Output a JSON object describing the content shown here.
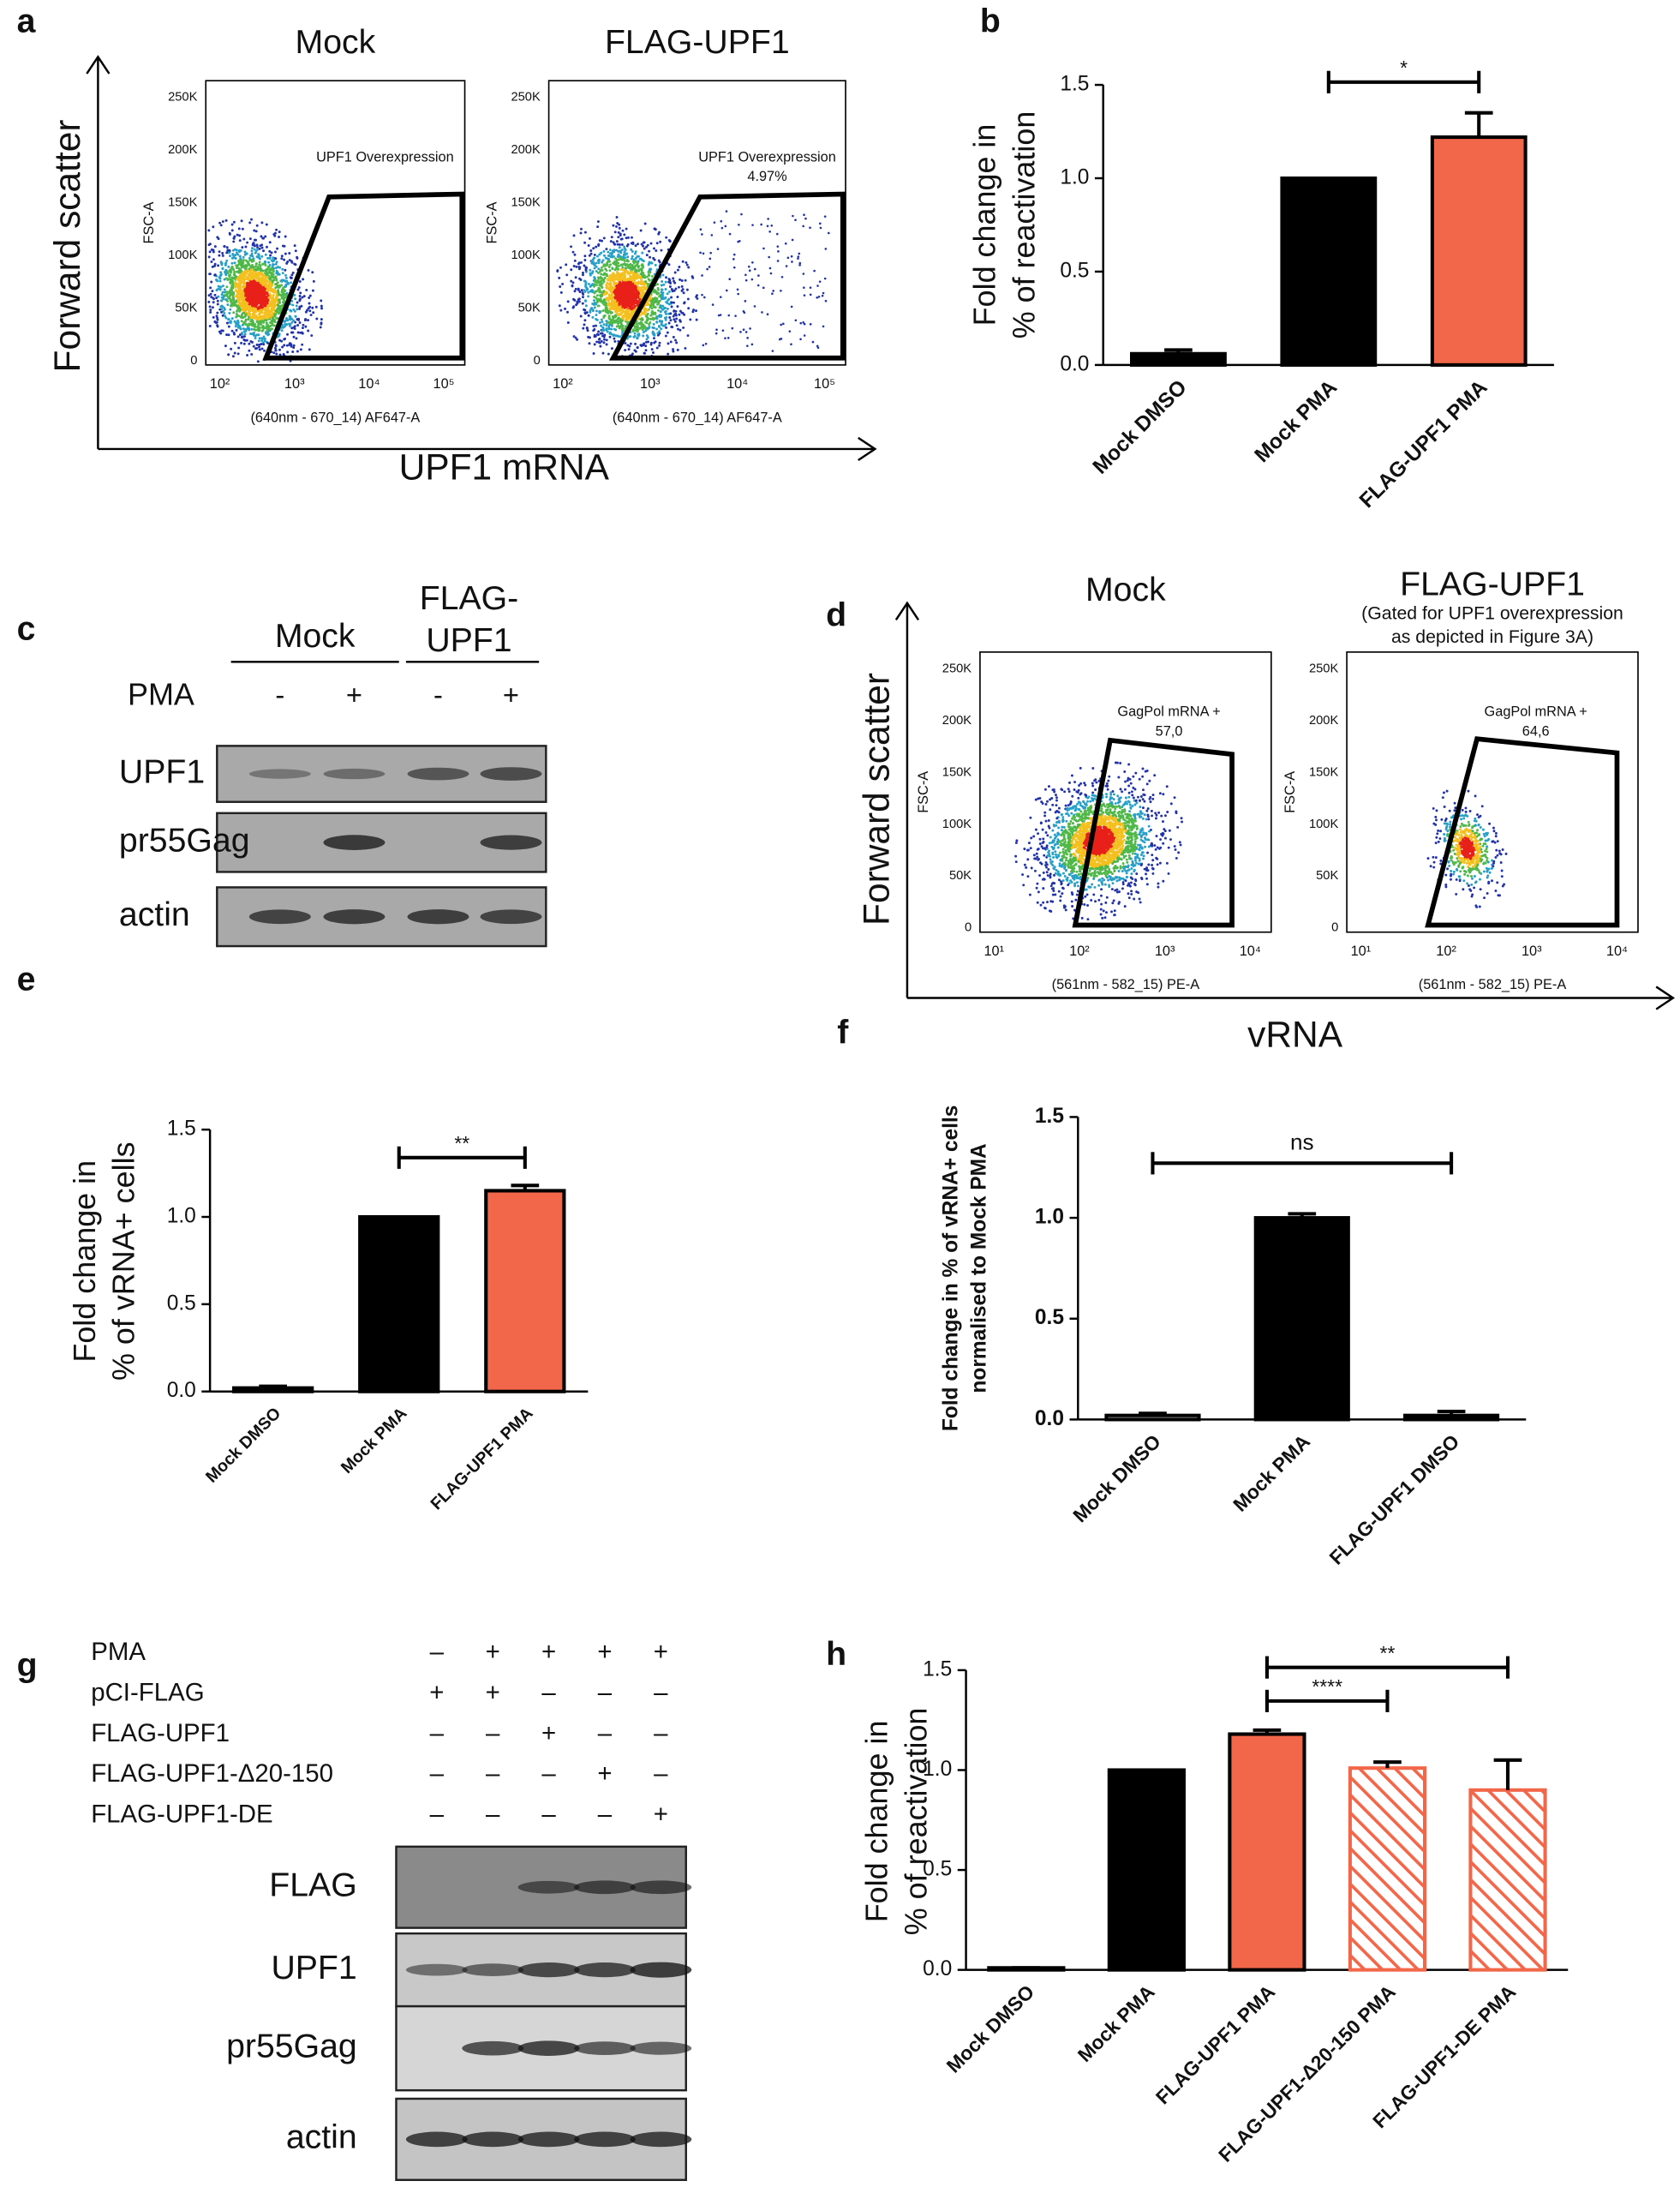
{
  "panel_labels": [
    "a",
    "b",
    "c",
    "d",
    "e",
    "f",
    "g",
    "h"
  ],
  "panel_a": {
    "y_axis_label": "Forward scatter",
    "x_axis_label": "UPF1 mRNA",
    "plots": [
      {
        "title": "Mock",
        "y_label": "FSC-A",
        "x_label": "(640nm - 670_14) AF647-A",
        "yticks": [
          "250K",
          "200K",
          "150K",
          "100K",
          "50K",
          "0"
        ],
        "xticks": [
          "10²",
          "10³",
          "10⁴",
          "10⁵"
        ],
        "gate_label": [
          "UPF1 Overexpression"
        ]
      },
      {
        "title": "FLAG-UPF1",
        "y_label": "FSC-A",
        "x_label": "(640nm - 670_14) AF647-A",
        "yticks": [
          "250K",
          "200K",
          "150K",
          "100K",
          "50K",
          "0"
        ],
        "xticks": [
          "10²",
          "10³",
          "10⁴",
          "10⁵"
        ],
        "gate_label": [
          "UPF1 Overexpression",
          "4.97%"
        ]
      }
    ]
  },
  "panel_c": {
    "groups": [
      [
        "Mock"
      ],
      [
        "FLAG-",
        "UPF1"
      ]
    ],
    "treatment": "PMA",
    "signs": [
      "-",
      "+",
      "-",
      "+"
    ],
    "rows": [
      "UPF1",
      "pr55Gag",
      "actin"
    ]
  },
  "panel_d": {
    "y_axis_label": "Forward scatter",
    "x_axis_label": "vRNA",
    "plots": [
      {
        "title": "Mock",
        "y_label": "FSC-A",
        "x_label": "(561nm - 582_15) PE-A",
        "yticks": [
          "250K",
          "200K",
          "150K",
          "100K",
          "50K",
          "0"
        ],
        "xticks": [
          "10¹",
          "10²",
          "10³",
          "10⁴"
        ],
        "gate_label": [
          "GagPol mRNA +",
          "57,0"
        ]
      },
      {
        "title": "FLAG-UPF1",
        "title_note": [
          "(Gated for UPF1 overexpression",
          "as depicted in Figure 3A)"
        ],
        "y_label": "FSC-A",
        "x_label": "(561nm - 582_15) PE-A",
        "yticks": [
          "250K",
          "200K",
          "150K",
          "100K",
          "50K",
          "0"
        ],
        "xticks": [
          "10¹",
          "10²",
          "10³",
          "10⁴"
        ],
        "gate_label": [
          "GagPol mRNA +",
          "64,6"
        ]
      }
    ]
  },
  "panel_g": {
    "conditions": [
      {
        "name": "PMA",
        "signs": [
          "–",
          "+",
          "+",
          "+",
          "+"
        ]
      },
      {
        "name": "pCI-FLAG",
        "signs": [
          "+",
          "+",
          "–",
          "–",
          "–"
        ]
      },
      {
        "name": "FLAG-UPF1",
        "signs": [
          "–",
          "–",
          "+",
          "–",
          "–"
        ]
      },
      {
        "name": "FLAG-UPF1-Δ20-150",
        "signs": [
          "–",
          "–",
          "–",
          "+",
          "–"
        ]
      },
      {
        "name": "FLAG-UPF1-DE",
        "signs": [
          "–",
          "–",
          "–",
          "–",
          "+"
        ]
      }
    ],
    "rows": [
      "FLAG",
      "UPF1",
      "pr55Gag",
      "actin"
    ]
  },
  "chart_data": [
    {
      "type": "bar",
      "ylabel": [
        "Fold change in",
        "% of reactivation"
      ],
      "categories": [
        "Mock DMSO",
        "Mock PMA",
        "FLAG-UPF1 PMA"
      ],
      "values": [
        0.06,
        1.0,
        1.22
      ],
      "errors": [
        0.02,
        0,
        0.13
      ],
      "colors": [
        "#000000",
        "#000000",
        "#f26649"
      ],
      "ylim": [
        0,
        1.5
      ],
      "yticks": [
        {
          "value": 0,
          "label": "0.0"
        },
        0.5,
        {
          "value": 1,
          "label": "1.0"
        },
        1.5
      ],
      "significance": [
        {
          "between": [
            "Mock PMA",
            "FLAG-UPF1 PMA"
          ],
          "label": "*"
        }
      ]
    },
    {
      "type": "bar",
      "ylabel": [
        "Fold change in",
        "% of vRNA+ cells"
      ],
      "categories": [
        "Mock DMSO",
        "Mock PMA",
        "FLAG-UPF1 PMA"
      ],
      "values": [
        0.02,
        1.0,
        1.15
      ],
      "errors": [
        0.01,
        0,
        0.03
      ],
      "colors": [
        "#000000",
        "#000000",
        "#f26649"
      ],
      "ylim": [
        0,
        1.5
      ],
      "yticks": [
        {
          "value": 0,
          "label": "0.0"
        },
        0.5,
        {
          "value": 1,
          "label": "1.0"
        },
        1.5
      ],
      "significance": [
        {
          "between": [
            "Mock PMA",
            "FLAG-UPF1 PMA"
          ],
          "label": "**"
        }
      ]
    },
    {
      "type": "bar",
      "ylabel": [
        "Fold change in % of vRNA+ cells",
        "normalised to Mock PMA"
      ],
      "categories": [
        "Mock DMSO",
        "Mock PMA",
        "FLAG-UPF1 DMSO"
      ],
      "values": [
        0.02,
        1.0,
        0.02
      ],
      "errors": [
        0.01,
        0.02,
        0.02
      ],
      "colors": [
        "#cccccc",
        "#000000",
        "#000000"
      ],
      "ylim": [
        0,
        1.5
      ],
      "yticks": [
        {
          "value": 0,
          "label": "0.0"
        },
        0.5,
        {
          "value": 1,
          "label": "1.0"
        },
        1.5
      ],
      "significance": [
        {
          "between": [
            "Mock DMSO",
            "FLAG-UPF1 DMSO"
          ],
          "label": "ns"
        }
      ]
    },
    {
      "type": "bar",
      "ylabel": [
        "Fold change in",
        "% of reactivation"
      ],
      "categories": [
        "Mock DMSO",
        "Mock PMA",
        "FLAG-UPF1 PMA",
        "FLAG-UPF1-Δ20-150 PMA",
        "FLAG-UPF1-DE PMA"
      ],
      "values": [
        0.01,
        1.0,
        1.18,
        1.01,
        0.9
      ],
      "errors": [
        0,
        0,
        0.02,
        0.03,
        0.15
      ],
      "colors": [
        "#000000",
        "#000000",
        "#f26649",
        "#f26649",
        "#f26649"
      ],
      "hatch": [
        false,
        false,
        false,
        true,
        true
      ],
      "ylim": [
        0,
        1.5
      ],
      "yticks": [
        {
          "value": 0,
          "label": "0.0"
        },
        0.5,
        {
          "value": 1,
          "label": "1.0"
        },
        1.5
      ],
      "significance": [
        {
          "between": [
            "FLAG-UPF1 PMA",
            "FLAG-UPF1-Δ20-150 PMA"
          ],
          "label": "****"
        },
        {
          "between": [
            "FLAG-UPF1 PMA",
            "FLAG-UPF1-DE PMA"
          ],
          "label": "**"
        }
      ]
    }
  ]
}
